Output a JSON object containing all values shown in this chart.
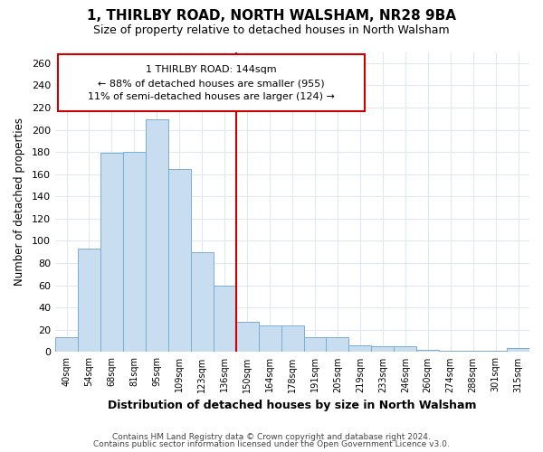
{
  "title": "1, THIRLBY ROAD, NORTH WALSHAM, NR28 9BA",
  "subtitle": "Size of property relative to detached houses in North Walsham",
  "xlabel": "Distribution of detached houses by size in North Walsham",
  "ylabel": "Number of detached properties",
  "bar_color": "#c8ddf0",
  "bar_edge_color": "#7aaed4",
  "bin_labels": [
    "40sqm",
    "54sqm",
    "68sqm",
    "81sqm",
    "95sqm",
    "109sqm",
    "123sqm",
    "136sqm",
    "150sqm",
    "164sqm",
    "178sqm",
    "191sqm",
    "205sqm",
    "219sqm",
    "233sqm",
    "246sqm",
    "260sqm",
    "274sqm",
    "288sqm",
    "301sqm",
    "315sqm"
  ],
  "bar_heights": [
    13,
    93,
    179,
    180,
    209,
    165,
    90,
    60,
    27,
    24,
    24,
    13,
    13,
    6,
    5,
    5,
    2,
    1,
    1,
    1,
    4
  ],
  "vline_x_index": 7.5,
  "vline_color": "#cc0000",
  "annotation_line1": "1 THIRLBY ROAD: 144sqm",
  "annotation_line2": "← 88% of detached houses are smaller (955)",
  "annotation_line3": "11% of semi-detached houses are larger (124) →",
  "annotation_box_color": "#ffffff",
  "annotation_box_edge": "#cc0000",
  "footer1": "Contains HM Land Registry data © Crown copyright and database right 2024.",
  "footer2": "Contains public sector information licensed under the Open Government Licence v3.0.",
  "ylim": [
    0,
    270
  ],
  "yticks": [
    0,
    20,
    40,
    60,
    80,
    100,
    120,
    140,
    160,
    180,
    200,
    220,
    240,
    260
  ],
  "background_color": "#ffffff",
  "plot_bg_color": "#ffffff",
  "grid_color": "#e0e8f0"
}
